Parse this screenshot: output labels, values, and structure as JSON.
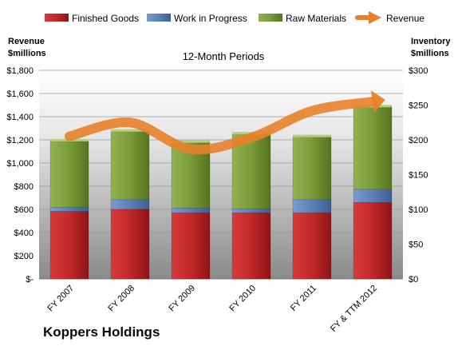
{
  "chart_data": {
    "type": "bar",
    "stacked": true,
    "title": "12-Month Periods",
    "company": "Koppers Holdings",
    "categories": [
      "FY 2007",
      "FY 2008",
      "FY 2009",
      "FY 2010",
      "FY 2011",
      "FY & TTM 2012"
    ],
    "left_axis": {
      "label_line1": "Revenue",
      "label_line2": "$millions",
      "range": [
        0,
        1800
      ],
      "ticks": [
        0,
        200,
        400,
        600,
        800,
        1000,
        1200,
        1400,
        1600,
        1800
      ],
      "tick_labels": [
        "$-",
        "$200",
        "$400",
        "$600",
        "$800",
        "$1,000",
        "$1,200",
        "$1,400",
        "$1,600",
        "$1,800"
      ]
    },
    "right_axis": {
      "label_line1": "Inventory",
      "label_line2": "$millions",
      "range": [
        0,
        300
      ],
      "ticks": [
        0,
        50,
        100,
        150,
        200,
        250,
        300
      ],
      "tick_labels": [
        "$0",
        "$50",
        "$100",
        "$150",
        "$200",
        "$250",
        "$300"
      ]
    },
    "series": [
      {
        "name": "Finished Goods",
        "axis": "right",
        "kind": "bar",
        "color": "#c0282a",
        "values": [
          97,
          100,
          95,
          95,
          95,
          110
        ]
      },
      {
        "name": "Work in Progress",
        "axis": "right",
        "kind": "bar",
        "color": "#5b7fb5",
        "values": [
          6,
          14,
          7,
          6,
          19,
          19
        ]
      },
      {
        "name": "Raw Materials",
        "axis": "right",
        "kind": "bar",
        "color": "#7a9a3a",
        "values": [
          96,
          99,
          95,
          108,
          91,
          119
        ]
      },
      {
        "name": "Revenue",
        "axis": "left",
        "kind": "line",
        "color": "#e8812a",
        "values": [
          1230,
          1350,
          1120,
          1220,
          1450,
          1530
        ]
      }
    ],
    "legend_position": "top",
    "grid": true
  }
}
